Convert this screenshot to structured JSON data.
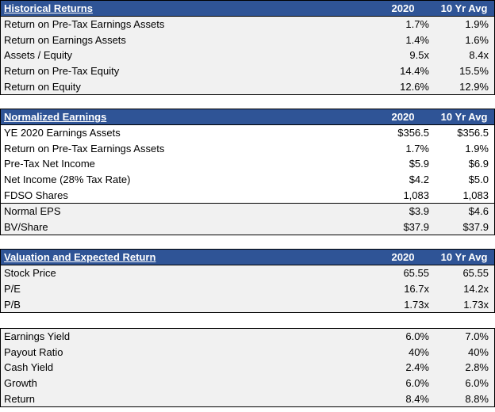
{
  "colors": {
    "header_bg": "#2F5496",
    "header_text": "#FFFFFF",
    "row_grey_bg": "#F1F1F1",
    "row_white_bg": "#FFFFFF",
    "border": "#000000",
    "body_text": "#000000"
  },
  "columns": {
    "col_2020": "2020",
    "col_10yr": "10 Yr Avg"
  },
  "sections": [
    {
      "title": "Historical Returns",
      "rows": [
        {
          "label": "Return on Pre-Tax Earnings Assets",
          "v2020": "1.7%",
          "v10yr": "1.9%"
        },
        {
          "label": "Return on Earnings Assets",
          "v2020": "1.4%",
          "v10yr": "1.6%"
        },
        {
          "label": "Assets / Equity",
          "v2020": "9.5x",
          "v10yr": "8.4x"
        },
        {
          "label": "Return on Pre-Tax Equity",
          "v2020": "14.4%",
          "v10yr": "15.5%"
        },
        {
          "label": "Return on Equity",
          "v2020": "12.6%",
          "v10yr": "12.9%"
        }
      ]
    },
    {
      "title": "Normalized Earnings",
      "rows": [
        {
          "label": "YE 2020 Earnings Assets",
          "v2020": "$356.5",
          "v10yr": "$356.5"
        },
        {
          "label": "Return on Pre-Tax Earnings Assets",
          "v2020": "1.7%",
          "v10yr": "1.9%"
        },
        {
          "label": "Pre-Tax Net Income",
          "v2020": "$5.9",
          "v10yr": "$6.9"
        },
        {
          "label": "Net Income (28% Tax Rate)",
          "v2020": "$4.2",
          "v10yr": "$5.0"
        },
        {
          "label": "FDSO Shares",
          "v2020": "1,083",
          "v10yr": "1,083"
        }
      ],
      "boxed_rows": [
        {
          "label": "Normal EPS",
          "v2020": "$3.9",
          "v10yr": "$4.6"
        },
        {
          "label": "BV/Share",
          "v2020": "$37.9",
          "v10yr": "$37.9"
        }
      ]
    },
    {
      "title": "Valuation and Expected Return",
      "rows": [
        {
          "label": "Stock Price",
          "v2020": "65.55",
          "v10yr": "65.55"
        },
        {
          "label": "P/E",
          "v2020": "16.7x",
          "v10yr": "14.2x"
        },
        {
          "label": "P/B",
          "v2020": "1.73x",
          "v10yr": "1.73x"
        }
      ]
    },
    {
      "title": null,
      "rows": [
        {
          "label": "Earnings Yield",
          "v2020": "6.0%",
          "v10yr": "7.0%"
        },
        {
          "label": "Payout Ratio",
          "v2020": "40%",
          "v10yr": "40%"
        },
        {
          "label": "Cash Yield",
          "v2020": "2.4%",
          "v10yr": "2.8%"
        },
        {
          "label": "Growth",
          "v2020": "6.0%",
          "v10yr": "6.0%"
        },
        {
          "label": "Return",
          "v2020": "8.4%",
          "v10yr": "8.8%"
        }
      ]
    }
  ]
}
